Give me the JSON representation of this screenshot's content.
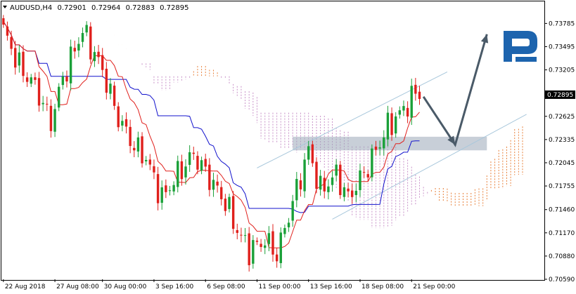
{
  "header": {
    "symbol": "AUDUSD,H4",
    "open": "0.72901",
    "high": "0.72964",
    "low": "0.72883",
    "close": "0.72895"
  },
  "colors": {
    "up": "#1aa038",
    "down": "#e0201c",
    "tenkan": "#e0201c",
    "kijun": "#1010cc",
    "cloud_bull": "#e8803a",
    "cloud_bear": "#c890c8",
    "channel": "#a9c8dc",
    "zone": "#9aa8b8",
    "arrow": "#4a5a68",
    "price_tag_bg": "#000000"
  },
  "logo_icon": "roboforex-r-logo",
  "chart_data": {
    "type": "candlestick",
    "ylim": [
      0.7059,
      0.7406
    ],
    "y_ticks": [
      "0.73785",
      "0.73495",
      "0.73205",
      "0.72625",
      "0.72335",
      "0.72045",
      "0.71755",
      "0.71460",
      "0.71170",
      "0.70880",
      "0.70590"
    ],
    "current_price": "0.72895",
    "x_ticks": [
      "22 Aug 2018",
      "27 Aug 08:00",
      "30 Aug 00:00",
      "3 Sep 16:00",
      "6 Sep 08:00",
      "11 Sep 00:00",
      "13 Sep 16:00",
      "18 Sep 08:00",
      "21 Sep 00:00"
    ],
    "x_tick_index": [
      0,
      13,
      25,
      38,
      51,
      64,
      77,
      90,
      103
    ],
    "key_closes": [
      0.737,
      0.7325,
      0.73,
      0.7255,
      0.731,
      0.737,
      0.732,
      0.726,
      0.7225,
      0.721,
      0.716,
      0.719,
      0.7215,
      0.7185,
      0.7155,
      0.712,
      0.7095,
      0.7108,
      0.709,
      0.7155,
      0.722,
      0.717,
      0.719,
      0.716,
      0.72,
      0.725,
      0.7265,
      0.7292
    ],
    "key_index": [
      0,
      4,
      8,
      12,
      15,
      20,
      25,
      29,
      33,
      36,
      40,
      44,
      48,
      52,
      56,
      59,
      62,
      66,
      69,
      73,
      77,
      80,
      84,
      87,
      92,
      97,
      100,
      104
    ],
    "channel": {
      "upper_line": {
        "from": [
          64,
          0.7198
        ],
        "to": [
          112,
          0.7318
        ]
      },
      "lower_line": {
        "from": [
          83,
          0.7134
        ],
        "to": [
          132,
          0.7265
        ]
      }
    },
    "support_zone": [
      0.722,
      0.7237
    ],
    "zone_index": [
      73,
      122
    ],
    "forecast": [
      [
        106,
        0.7287
      ],
      [
        114,
        0.7227
      ],
      [
        122,
        0.7365
      ]
    ]
  }
}
